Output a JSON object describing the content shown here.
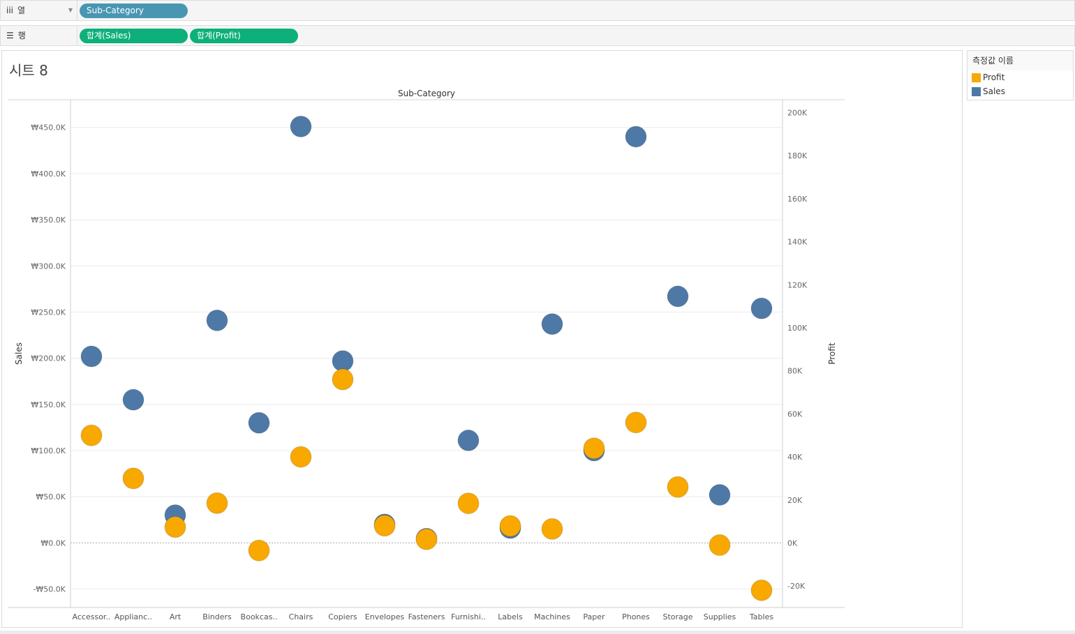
{
  "shelves": {
    "columns": {
      "label": "열",
      "icon": "columns-icon",
      "pills": [
        "Sub-Category"
      ]
    },
    "rows": {
      "label": "행",
      "icon": "rows-icon",
      "pills": [
        "합계(Sales)",
        "합계(Profit)"
      ]
    }
  },
  "sheet": {
    "title": "시트 8"
  },
  "legend": {
    "title": "측정값 이름",
    "items": [
      {
        "label": "Profit",
        "color": "#f9a800"
      },
      {
        "label": "Sales",
        "color": "#4e79a7"
      }
    ]
  },
  "chart_data": {
    "type": "scatter",
    "title": "Sub-Category",
    "xlabel": "Sub-Category",
    "ylabel_left": "Sales",
    "ylabel_right": "Profit",
    "categories": [
      "Accessories",
      "Appliances",
      "Art",
      "Binders",
      "Bookcases",
      "Chairs",
      "Copiers",
      "Envelopes",
      "Fasteners",
      "Furnishings",
      "Labels",
      "Machines",
      "Paper",
      "Phones",
      "Storage",
      "Supplies",
      "Tables"
    ],
    "category_labels": [
      "Accessor..",
      "Applianc..",
      "Art",
      "Binders",
      "Bookcas..",
      "Chairs",
      "Copiers",
      "Envelopes",
      "Fasteners",
      "Furnishi..",
      "Labels",
      "Machines",
      "Paper",
      "Phones",
      "Storage",
      "Supplies",
      "Tables"
    ],
    "left_axis": {
      "ylim": [
        -70000,
        480000
      ],
      "ticks": [
        -50000,
        0,
        50000,
        100000,
        150000,
        200000,
        250000,
        300000,
        350000,
        400000,
        450000
      ],
      "tick_labels": [
        "-₩50.0K",
        "₩0.0K",
        "₩50.0K",
        "₩100.0K",
        "₩150.0K",
        "₩200.0K",
        "₩250.0K",
        "₩300.0K",
        "₩350.0K",
        "₩400.0K",
        "₩450.0K"
      ]
    },
    "right_axis": {
      "ylim": [
        -30000,
        206000
      ],
      "ticks": [
        -20000,
        0,
        20000,
        40000,
        60000,
        80000,
        100000,
        120000,
        140000,
        160000,
        180000,
        200000
      ],
      "tick_labels": [
        "-20K",
        "0K",
        "20K",
        "40K",
        "60K",
        "80K",
        "100K",
        "120K",
        "140K",
        "160K",
        "180K",
        "200K"
      ]
    },
    "series": [
      {
        "name": "Sales",
        "axis": "left",
        "color": "#4e79a7",
        "values": [
          202000,
          155000,
          30000,
          241000,
          130000,
          451000,
          197000,
          20000,
          4500,
          111000,
          16000,
          237000,
          100000,
          440000,
          267000,
          52000,
          254000
        ]
      },
      {
        "name": "Profit",
        "axis": "right",
        "color": "#f9a800",
        "values": [
          50000,
          30000,
          7400,
          18500,
          -3500,
          40000,
          76000,
          8000,
          1700,
          18400,
          7900,
          6500,
          44000,
          56000,
          26000,
          -1000,
          -22000
        ]
      }
    ],
    "grid": true,
    "legend_position": "right"
  }
}
